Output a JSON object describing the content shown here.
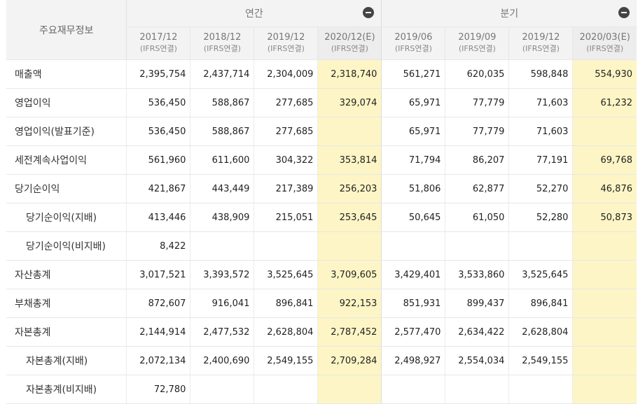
{
  "header": {
    "row_label": "주요재무정보",
    "annual_label": "연간",
    "quarter_label": "분기",
    "columns": [
      {
        "period": "2017/12",
        "std": "(IFRS연결)"
      },
      {
        "period": "2018/12",
        "std": "(IFRS연결)"
      },
      {
        "period": "2019/12",
        "std": "(IFRS연결)"
      },
      {
        "period": "2020/12(E)",
        "std": "(IFRS연결)"
      },
      {
        "period": "2019/06",
        "std": "(IFRS연결)"
      },
      {
        "period": "2019/09",
        "std": "(IFRS연결)"
      },
      {
        "period": "2019/12",
        "std": "(IFRS연결)"
      },
      {
        "period": "2020/03(E)",
        "std": "(IFRS연결)"
      }
    ]
  },
  "rows": [
    {
      "label": "매출액",
      "indent": false,
      "values": [
        "2,395,754",
        "2,437,714",
        "2,304,009",
        "2,318,740",
        "561,271",
        "620,035",
        "598,848",
        "554,930"
      ]
    },
    {
      "label": "영업이익",
      "indent": false,
      "values": [
        "536,450",
        "588,867",
        "277,685",
        "329,074",
        "65,971",
        "77,779",
        "71,603",
        "61,232"
      ]
    },
    {
      "label": "영업이익(발표기준)",
      "indent": false,
      "values": [
        "536,450",
        "588,867",
        "277,685",
        "",
        "65,971",
        "77,779",
        "71,603",
        ""
      ]
    },
    {
      "label": "세전계속사업이익",
      "indent": false,
      "values": [
        "561,960",
        "611,600",
        "304,322",
        "353,814",
        "71,794",
        "86,207",
        "77,191",
        "69,768"
      ]
    },
    {
      "label": "당기순이익",
      "indent": false,
      "values": [
        "421,867",
        "443,449",
        "217,389",
        "256,203",
        "51,806",
        "62,877",
        "52,270",
        "46,876"
      ]
    },
    {
      "label": "당기순이익(지배)",
      "indent": true,
      "values": [
        "413,446",
        "438,909",
        "215,051",
        "253,645",
        "50,645",
        "61,050",
        "52,280",
        "50,873"
      ]
    },
    {
      "label": "당기순이익(비지배)",
      "indent": true,
      "values": [
        "8,422",
        "",
        "",
        "",
        "",
        "",
        "",
        ""
      ]
    },
    {
      "label": "자산총계",
      "indent": false,
      "values": [
        "3,017,521",
        "3,393,572",
        "3,525,645",
        "3,709,605",
        "3,429,401",
        "3,533,860",
        "3,525,645",
        ""
      ]
    },
    {
      "label": "부채총계",
      "indent": false,
      "values": [
        "872,607",
        "916,041",
        "896,841",
        "922,153",
        "851,931",
        "899,437",
        "896,841",
        ""
      ]
    },
    {
      "label": "자본총계",
      "indent": false,
      "values": [
        "2,144,914",
        "2,477,532",
        "2,628,804",
        "2,787,452",
        "2,577,470",
        "2,634,422",
        "2,628,804",
        ""
      ]
    },
    {
      "label": "자본총계(지배)",
      "indent": true,
      "values": [
        "2,072,134",
        "2,400,690",
        "2,549,155",
        "2,709,284",
        "2,498,927",
        "2,554,034",
        "2,549,155",
        ""
      ]
    },
    {
      "label": "자본총계(비지배)",
      "indent": true,
      "values": [
        "72,780",
        "",
        "",
        "",
        "",
        "",
        "",
        ""
      ]
    }
  ]
}
